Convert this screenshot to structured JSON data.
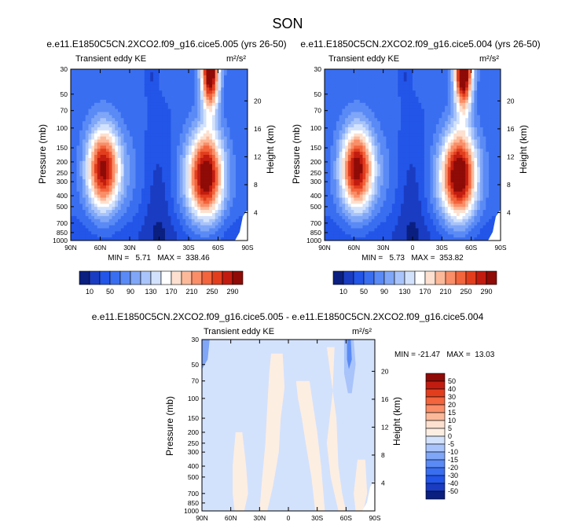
{
  "figure": {
    "title": "SON"
  },
  "chart_data": [
    {
      "type": "heatmap",
      "title": "e.e11.E1850C5CN.2XCO2.f09_g16.cice5.005 (yrs 26-50)",
      "subtitle": "Transient eddy KE",
      "units": "m²/s²",
      "xlabel": "",
      "ylabel": "Pressure (mb)",
      "ylabel_right": "Height (km)",
      "x_ticks": [
        "90N",
        "60N",
        "30N",
        "0",
        "30S",
        "60S",
        "90S"
      ],
      "y_ticks": [
        "30",
        "50",
        "70",
        "100",
        "150",
        "200",
        "250",
        "300",
        "400",
        "500",
        "700",
        "850",
        "1000"
      ],
      "y_ticks_right": [
        "20",
        "16",
        "12",
        "8",
        "4"
      ],
      "stats": "MIN =   5.71   MAX =  338.46",
      "min": 5.71,
      "max": 338.46,
      "features": [
        {
          "lat": -52,
          "p": 30,
          "value": 330,
          "sx": 9,
          "sy": 0.32
        },
        {
          "lat": 57,
          "p": 230,
          "value": 270,
          "sx": 16,
          "sy": 0.33
        },
        {
          "lat": -48,
          "p": 260,
          "value": 280,
          "sx": 17,
          "sy": 0.35
        }
      ]
    },
    {
      "type": "heatmap",
      "title": "e.e11.E1850C5CN.2XCO2.f09_g16.cice5.004 (yrs 26-50)",
      "subtitle": "Transient eddy KE",
      "units": "m²/s²",
      "xlabel": "",
      "ylabel": "Pressure (mb)",
      "ylabel_right": "Height (km)",
      "x_ticks": [
        "90N",
        "60N",
        "30N",
        "0",
        "30S",
        "60S",
        "90S"
      ],
      "y_ticks": [
        "30",
        "50",
        "70",
        "100",
        "150",
        "200",
        "250",
        "300",
        "400",
        "500",
        "700",
        "850",
        "1000"
      ],
      "y_ticks_right": [
        "20",
        "16",
        "12",
        "8",
        "4"
      ],
      "stats": "MIN =   5.73   MAX =  353.82",
      "min": 5.73,
      "max": 353.82,
      "features": [
        {
          "lat": -52,
          "p": 30,
          "value": 345,
          "sx": 9,
          "sy": 0.32
        },
        {
          "lat": 57,
          "p": 230,
          "value": 275,
          "sx": 16,
          "sy": 0.33
        },
        {
          "lat": -48,
          "p": 260,
          "value": 290,
          "sx": 17,
          "sy": 0.35
        }
      ]
    },
    {
      "type": "heatmap",
      "title": "e.e11.E1850C5CN.2XCO2.f09_g16.cice5.005 - e.e11.E1850C5CN.2XCO2.f09_g16.cice5.004",
      "subtitle": "Transient eddy KE",
      "units": "m²/s²",
      "xlabel": "",
      "ylabel": "Pressure (mb)",
      "ylabel_right": "Height (km)",
      "x_ticks": [
        "90N",
        "60N",
        "30N",
        "0",
        "30S",
        "60S",
        "90S"
      ],
      "y_ticks": [
        "30",
        "50",
        "70",
        "100",
        "150",
        "200",
        "250",
        "300",
        "400",
        "500",
        "700",
        "850",
        "1000"
      ],
      "y_ticks_right": [
        "20",
        "16",
        "12",
        "8",
        "4"
      ],
      "stats": "MIN = -21.47   MAX =  13.03",
      "min": -21.47,
      "max": 13.03
    }
  ],
  "colorbars": {
    "absolute": {
      "labels": [
        "10",
        "50",
        "90",
        "130",
        "170",
        "210",
        "250",
        "290"
      ],
      "levels": [
        10,
        30,
        50,
        70,
        90,
        110,
        130,
        150,
        170,
        190,
        210,
        230,
        250,
        270,
        290
      ],
      "colors": [
        "#0a1f80",
        "#1a3cc2",
        "#2255e8",
        "#3a6ef0",
        "#5a8af5",
        "#7fa6f7",
        "#a9c4fa",
        "#d3e2fc",
        "#ffffff",
        "#fde0cf",
        "#fcb99a",
        "#f98e68",
        "#f2653d",
        "#e23e1e",
        "#c21c10",
        "#8f0b07"
      ]
    },
    "difference": {
      "labels": [
        "50",
        "40",
        "30",
        "20",
        "15",
        "10",
        "5",
        "0",
        "-5",
        "-10",
        "-15",
        "-20",
        "-30",
        "-40",
        "-50"
      ],
      "colors": [
        "#8f0b07",
        "#c21c10",
        "#e23e1e",
        "#f2653d",
        "#f98e68",
        "#fcb99a",
        "#fde0cf",
        "#fdeee2",
        "#d3e2fc",
        "#a9c4fa",
        "#7fa6f7",
        "#5a8af5",
        "#3a6ef0",
        "#2255e8",
        "#1a3cc2",
        "#0a1f80"
      ]
    }
  }
}
